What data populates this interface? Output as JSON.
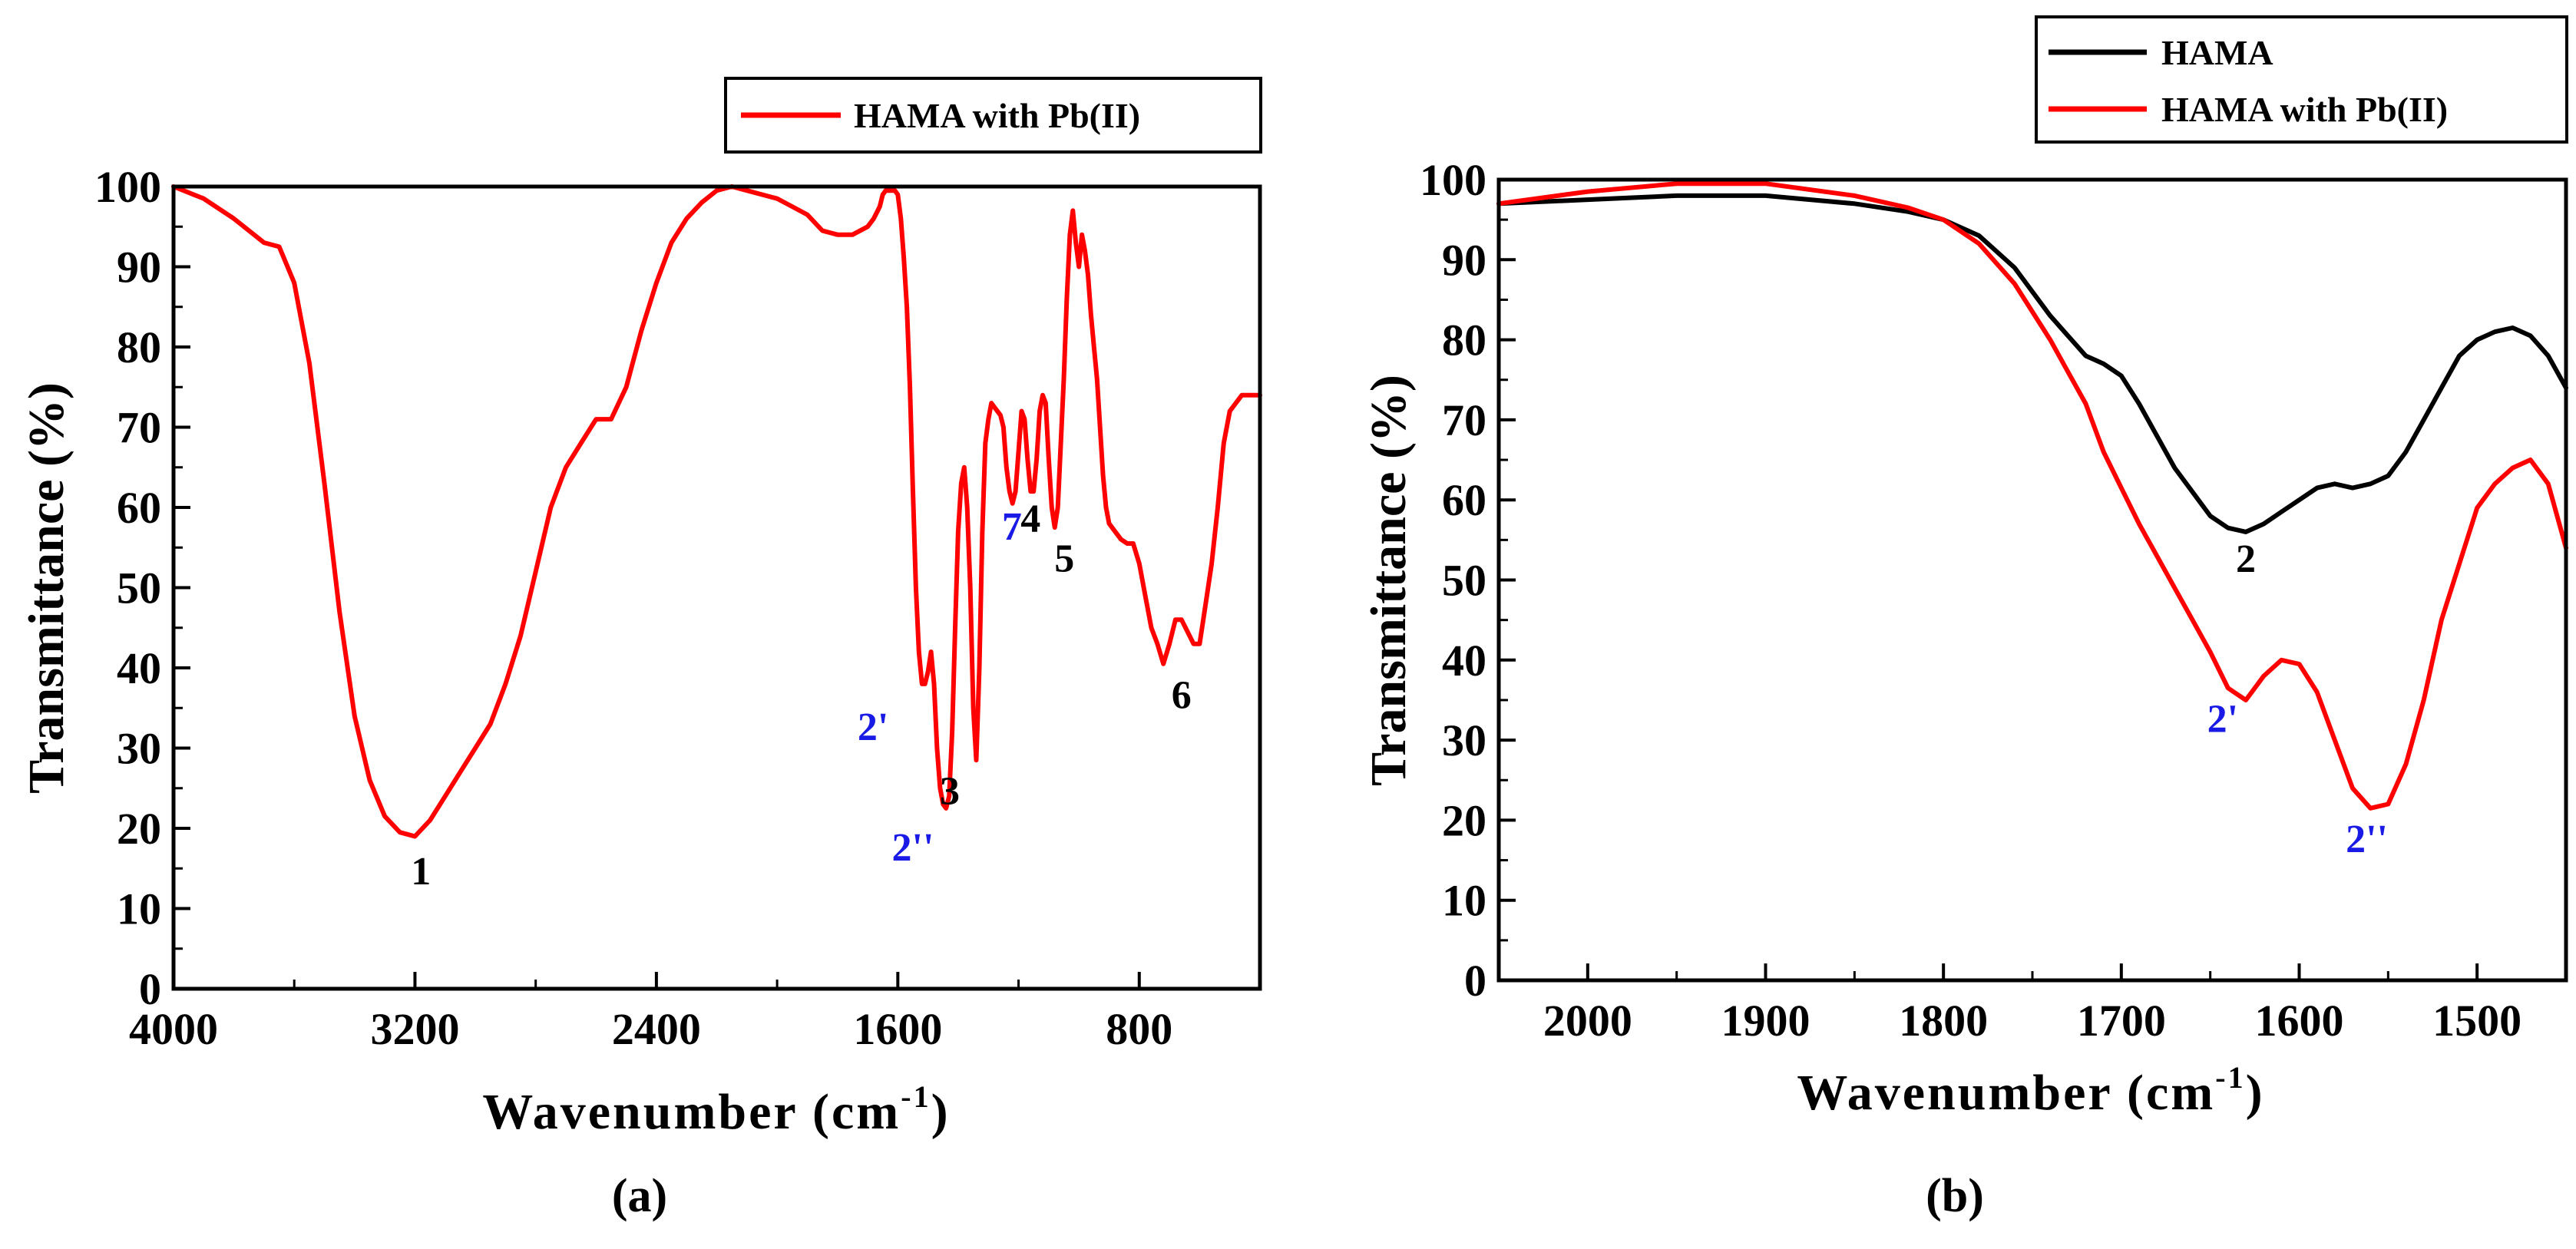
{
  "figure": {
    "colors": {
      "hama": "#000000",
      "hama_pb": "#ff0000",
      "peak_black": "#000000",
      "peak_blue": "#1a1ae6"
    }
  },
  "chart_data": [
    {
      "type": "line",
      "panel_label_prefix": "(",
      "panel_label": "a",
      "panel_label_suffix": ")",
      "xlabel": "Wavenumber (cm",
      "xlabel_sup": "-1",
      "xlabel_end": ")",
      "ylabel": "Transmittance (%)",
      "xlim": [
        4000,
        400
      ],
      "ylim": [
        0,
        100
      ],
      "x_ticks": [
        4000,
        3200,
        2400,
        1600,
        800
      ],
      "y_ticks": [
        0,
        10,
        20,
        30,
        40,
        50,
        60,
        70,
        80,
        90,
        100
      ],
      "legend": [
        "HAMA with Pb(II)"
      ],
      "series": [
        {
          "name": "HAMA with Pb(II)",
          "color": "#ff0000",
          "x": [
            4000,
            3900,
            3800,
            3700,
            3650,
            3600,
            3550,
            3500,
            3450,
            3400,
            3350,
            3300,
            3250,
            3200,
            3150,
            3100,
            3050,
            3000,
            2950,
            2900,
            2850,
            2800,
            2750,
            2700,
            2650,
            2600,
            2550,
            2500,
            2450,
            2400,
            2350,
            2300,
            2250,
            2200,
            2150,
            2100,
            2050,
            2000,
            1950,
            1900,
            1850,
            1800,
            1750,
            1700,
            1680,
            1660,
            1650,
            1640,
            1630,
            1620,
            1610,
            1600,
            1590,
            1580,
            1570,
            1560,
            1550,
            1540,
            1530,
            1520,
            1510,
            1500,
            1490,
            1480,
            1470,
            1460,
            1450,
            1440,
            1430,
            1420,
            1410,
            1400,
            1390,
            1380,
            1370,
            1360,
            1350,
            1340,
            1330,
            1320,
            1310,
            1300,
            1290,
            1280,
            1270,
            1260,
            1250,
            1240,
            1230,
            1220,
            1210,
            1200,
            1190,
            1180,
            1170,
            1160,
            1150,
            1140,
            1130,
            1120,
            1110,
            1100,
            1090,
            1080,
            1070,
            1060,
            1050,
            1040,
            1030,
            1020,
            1010,
            1000,
            990,
            980,
            970,
            960,
            950,
            940,
            930,
            920,
            910,
            900,
            880,
            860,
            840,
            820,
            800,
            780,
            760,
            740,
            720,
            700,
            680,
            660,
            640,
            620,
            600,
            580,
            560,
            540,
            520,
            500,
            480,
            460,
            440,
            420,
            400
          ],
          "y": [
            100,
            98.5,
            96,
            93,
            92.5,
            88,
            78,
            63,
            47,
            34,
            26,
            21.5,
            19.5,
            19,
            21,
            24,
            27,
            30,
            33,
            38,
            44,
            52,
            60,
            65,
            68,
            71,
            71,
            75,
            82,
            88,
            93,
            96,
            98,
            99.5,
            100,
            99.5,
            99,
            98.5,
            97.5,
            96.5,
            94.5,
            94,
            94,
            95,
            96,
            97.5,
            99,
            99.5,
            99.5,
            99.5,
            99.5,
            99,
            96,
            91,
            85,
            75,
            62,
            50,
            42,
            38,
            38,
            39.5,
            42,
            38,
            30,
            25,
            23,
            22.5,
            24,
            32,
            45,
            57,
            63,
            65,
            60,
            50,
            35,
            28.5,
            40,
            57,
            68,
            71,
            73,
            72.5,
            72,
            71.5,
            70,
            65,
            62,
            60.5,
            62,
            67,
            72,
            71,
            66,
            62,
            62,
            66,
            72,
            74,
            73,
            66,
            60,
            57.5,
            60,
            68,
            76,
            86,
            94,
            97,
            93,
            90,
            94,
            92,
            89,
            84,
            80,
            76,
            70,
            64,
            60,
            58,
            57,
            56,
            55.5,
            55.5,
            53,
            49,
            45,
            43,
            40.5,
            43,
            46,
            46,
            44.5,
            43,
            43,
            48,
            53,
            60,
            68,
            72,
            73,
            74,
            74,
            74,
            74
          ]
        }
      ],
      "annotations": [
        {
          "text": "1",
          "x": 3180,
          "y": 13,
          "color": "#000000"
        },
        {
          "text": "2'",
          "x": 1682,
          "y": 31,
          "color": "#1a1ae6"
        },
        {
          "text": "2''",
          "x": 1550,
          "y": 16,
          "color": "#1a1ae6"
        },
        {
          "text": "3",
          "x": 1428,
          "y": 23,
          "color": "#000000"
        },
        {
          "text": "7",
          "x": 1222,
          "y": 56,
          "color": "#1a1ae6"
        },
        {
          "text": "4",
          "x": 1160,
          "y": 57,
          "color": "#000000"
        },
        {
          "text": "5",
          "x": 1048,
          "y": 52,
          "color": "#000000"
        },
        {
          "text": "6",
          "x": 660,
          "y": 35,
          "color": "#000000"
        }
      ]
    },
    {
      "type": "line",
      "panel_label_prefix": "(",
      "panel_label": "b",
      "panel_label_suffix": ")",
      "xlabel": "Wavenumber (cm",
      "xlabel_sup": "-1",
      "xlabel_end": ")",
      "ylabel": "Transmittance (%)",
      "xlim": [
        2050,
        1450
      ],
      "ylim": [
        0,
        100
      ],
      "x_ticks": [
        2000,
        1900,
        1800,
        1700,
        1600,
        1500
      ],
      "y_ticks": [
        0,
        10,
        20,
        30,
        40,
        50,
        60,
        70,
        80,
        90,
        100
      ],
      "legend": [
        "HAMA",
        "HAMA with Pb(II)"
      ],
      "series": [
        {
          "name": "HAMA",
          "color": "#000000",
          "x": [
            2050,
            2000,
            1950,
            1900,
            1850,
            1820,
            1800,
            1780,
            1760,
            1740,
            1730,
            1720,
            1710,
            1700,
            1690,
            1680,
            1670,
            1660,
            1650,
            1640,
            1630,
            1620,
            1610,
            1600,
            1590,
            1580,
            1570,
            1560,
            1550,
            1540,
            1530,
            1520,
            1510,
            1500,
            1490,
            1480,
            1470,
            1460,
            1450
          ],
          "y": [
            97,
            97.5,
            98,
            98,
            97,
            96,
            95,
            93,
            89,
            83,
            80.5,
            78,
            77,
            75.5,
            72,
            68,
            64,
            61,
            58,
            56.5,
            56,
            57,
            58.5,
            60,
            61.5,
            62,
            61.5,
            62,
            63,
            66,
            70,
            74,
            78,
            80,
            81,
            81.5,
            80.5,
            78,
            74
          ]
        },
        {
          "name": "HAMA with Pb(II)",
          "color": "#ff0000",
          "x": [
            2050,
            2000,
            1950,
            1900,
            1850,
            1820,
            1800,
            1780,
            1760,
            1740,
            1730,
            1720,
            1710,
            1700,
            1690,
            1680,
            1670,
            1660,
            1650,
            1640,
            1630,
            1620,
            1610,
            1600,
            1590,
            1580,
            1570,
            1560,
            1550,
            1540,
            1530,
            1520,
            1510,
            1500,
            1490,
            1480,
            1470,
            1460,
            1450
          ],
          "y": [
            97,
            98.5,
            99.5,
            99.5,
            98,
            96.5,
            95,
            92,
            87,
            80,
            76,
            72,
            66,
            61.5,
            57,
            53,
            49,
            45,
            41,
            36.5,
            35,
            38,
            40,
            39.5,
            36,
            30,
            24,
            21.5,
            22,
            27,
            35,
            45,
            52,
            59,
            62,
            64,
            65,
            62,
            54
          ]
        }
      ],
      "annotations": [
        {
          "text": "2",
          "x": 1630,
          "y": 51,
          "color": "#000000"
        },
        {
          "text": "2'",
          "x": 1643,
          "y": 31,
          "color": "#1a1ae6"
        },
        {
          "text": "2''",
          "x": 1562,
          "y": 16,
          "color": "#1a1ae6"
        }
      ]
    }
  ]
}
